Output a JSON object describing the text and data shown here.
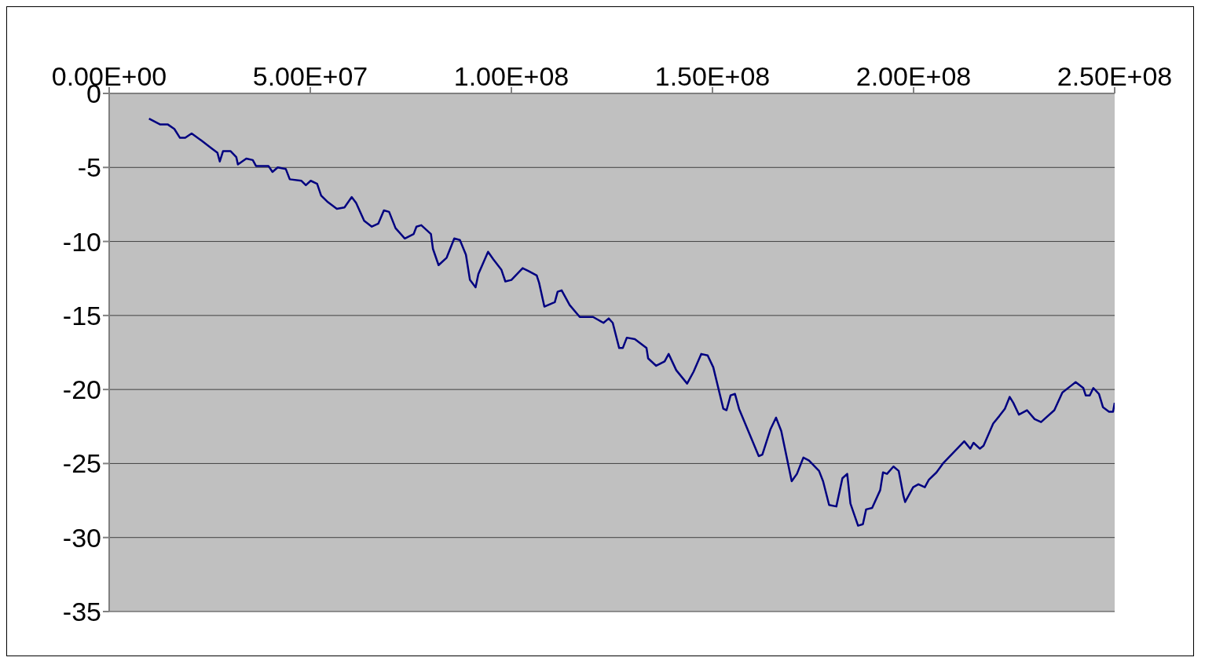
{
  "chart_data": {
    "type": "line",
    "x": [
      9900000,
      12700000,
      14600000,
      16200000,
      17600000,
      18900000,
      20500000,
      23000000,
      25400000,
      26900000,
      27500000,
      28300000,
      30200000,
      31600000,
      32000000,
      34100000,
      35700000,
      36500000,
      39600000,
      40600000,
      41900000,
      43900000,
      44900000,
      47800000,
      48900000,
      50100000,
      51700000,
      52700000,
      54200000,
      56600000,
      58500000,
      60300000,
      61400000,
      63400000,
      65300000,
      66900000,
      68300000,
      69600000,
      71200000,
      73500000,
      75700000,
      76400000,
      77600000,
      80000000,
      80500000,
      81900000,
      83900000,
      85800000,
      87200000,
      88700000,
      89700000,
      91100000,
      91800000,
      94200000,
      95500000,
      97500000,
      98500000,
      100000000,
      101400000,
      102800000,
      104300000,
      106300000,
      106900000,
      108200000,
      110800000,
      111500000,
      112500000,
      114500000,
      117000000,
      120300000,
      122900000,
      124200000,
      125200000,
      126800000,
      127700000,
      128700000,
      130700000,
      133600000,
      134000000,
      136000000,
      138100000,
      139100000,
      141000000,
      143700000,
      145300000,
      147200000,
      148800000,
      150200000,
      152700000,
      153500000,
      154500000,
      155600000,
      156600000,
      158900000,
      161500000,
      162400000,
      164400000,
      165800000,
      167100000,
      169700000,
      171000000,
      172600000,
      174000000,
      176500000,
      177500000,
      179000000,
      180800000,
      182300000,
      183500000,
      184300000,
      186200000,
      187400000,
      188200000,
      189700000,
      191700000,
      192400000,
      193400000,
      195000000,
      196300000,
      197500000,
      197900000,
      199900000,
      201200000,
      202800000,
      203800000,
      205700000,
      207300000,
      211200000,
      212600000,
      214100000,
      214900000,
      216500000,
      217400000,
      219800000,
      221300000,
      222700000,
      223900000,
      224800000,
      226200000,
      228200000,
      230100000,
      231700000,
      235000000,
      237000000,
      238900000,
      240300000,
      242200000,
      242800000,
      243800000,
      244700000,
      246100000,
      247100000,
      248600000,
      249600000,
      250000000
    ],
    "series": [
      {
        "color": "#000080",
        "values": [
          -1.7,
          -2.1,
          -2.1,
          -2.4,
          -3.0,
          -3.0,
          -2.7,
          -3.2,
          -3.7,
          -4.0,
          -4.6,
          -3.9,
          -3.9,
          -4.3,
          -4.8,
          -4.4,
          -4.5,
          -4.9,
          -4.9,
          -5.3,
          -5.0,
          -5.1,
          -5.8,
          -5.9,
          -6.2,
          -5.9,
          -6.1,
          -6.9,
          -7.3,
          -7.8,
          -7.7,
          -7.0,
          -7.4,
          -8.6,
          -9.0,
          -8.8,
          -7.9,
          -8.0,
          -9.1,
          -9.8,
          -9.5,
          -9.0,
          -8.9,
          -9.5,
          -10.5,
          -11.6,
          -11.1,
          -9.8,
          -9.9,
          -10.9,
          -12.6,
          -13.1,
          -12.2,
          -10.7,
          -11.2,
          -11.9,
          -12.7,
          -12.6,
          -12.2,
          -11.8,
          -12.0,
          -12.3,
          -12.8,
          -14.4,
          -14.1,
          -13.4,
          -13.3,
          -14.3,
          -15.1,
          -15.1,
          -15.5,
          -15.2,
          -15.5,
          -17.2,
          -17.2,
          -16.5,
          -16.6,
          -17.2,
          -17.9,
          -18.4,
          -18.1,
          -17.6,
          -18.7,
          -19.6,
          -18.8,
          -17.6,
          -17.7,
          -18.5,
          -21.3,
          -21.4,
          -20.4,
          -20.3,
          -21.3,
          -22.8,
          -24.5,
          -24.4,
          -22.7,
          -21.9,
          -22.8,
          -26.2,
          -25.7,
          -24.6,
          -24.8,
          -25.5,
          -26.2,
          -27.8,
          -27.9,
          -26.0,
          -25.7,
          -27.7,
          -29.2,
          -29.1,
          -28.1,
          -28.0,
          -26.8,
          -25.6,
          -25.7,
          -25.2,
          -25.5,
          -27.2,
          -27.6,
          -26.6,
          -26.4,
          -26.6,
          -26.1,
          -25.6,
          -25.0,
          -23.9,
          -23.5,
          -24.0,
          -23.6,
          -24.0,
          -23.8,
          -22.3,
          -21.8,
          -21.3,
          -20.5,
          -20.9,
          -21.7,
          -21.4,
          -22.0,
          -22.2,
          -21.4,
          -20.2,
          -19.8,
          -19.5,
          -19.9,
          -20.4,
          -20.4,
          -19.9,
          -20.3,
          -21.2,
          -21.5,
          -21.5,
          -20.9
        ]
      }
    ],
    "xlim": [
      0,
      250000000
    ],
    "xticks": [
      {
        "value": 0,
        "label": "0.00E+00"
      },
      {
        "value": 50000000,
        "label": "5.00E+07"
      },
      {
        "value": 100000000,
        "label": "1.00E+08"
      },
      {
        "value": 150000000,
        "label": "1.50E+08"
      },
      {
        "value": 200000000,
        "label": "2.00E+08"
      },
      {
        "value": 250000000,
        "label": "2.50E+08"
      }
    ],
    "ylim": [
      -35,
      0
    ],
    "yticks": [
      0,
      -5,
      -10,
      -15,
      -20,
      -25,
      -30,
      -35
    ],
    "grid": "y",
    "marker": "none",
    "line_style": "solid"
  }
}
